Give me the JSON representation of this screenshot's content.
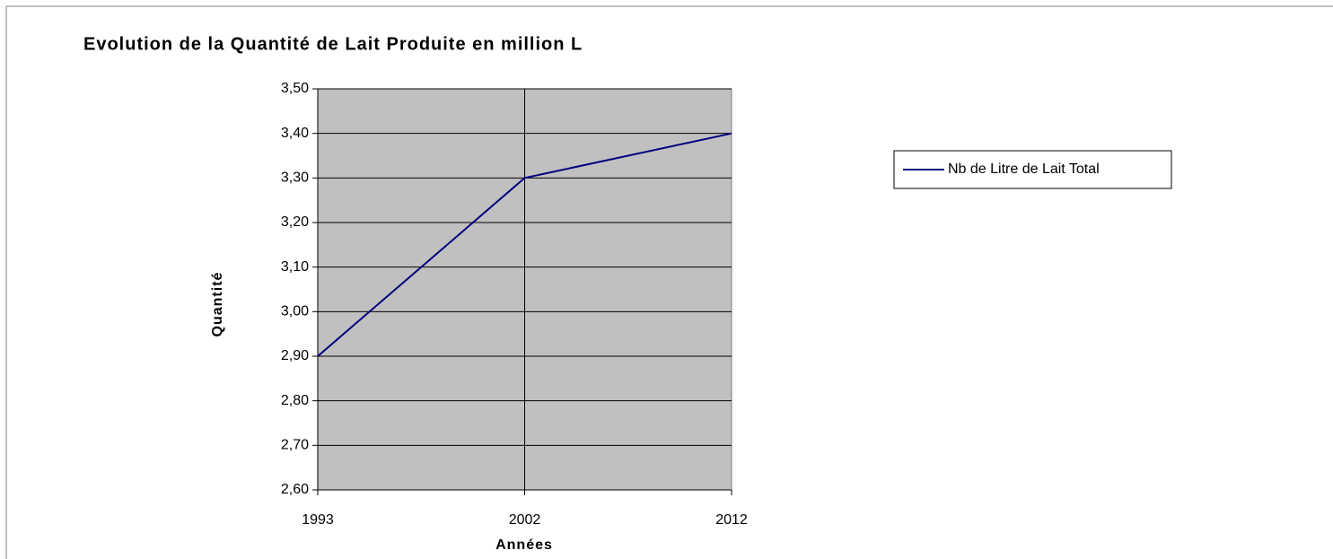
{
  "chart_data": {
    "type": "line",
    "title": "Evolution de la Quantité de Lait Produite en million L",
    "x_label": "Années",
    "y_label": "Quantité",
    "categories": [
      "1993",
      "2002",
      "2012"
    ],
    "series": [
      {
        "name": "Nb de Litre de Lait Total",
        "color": "#000080",
        "values": [
          2.9,
          3.3,
          3.4
        ]
      }
    ],
    "ylim": [
      2.6,
      3.5
    ],
    "yticks": [
      {
        "value": 2.6,
        "label": "2,60"
      },
      {
        "value": 2.7,
        "label": "2,70"
      },
      {
        "value": 2.8,
        "label": "2,80"
      },
      {
        "value": 2.9,
        "label": "2,90"
      },
      {
        "value": 3.0,
        "label": "3,00"
      },
      {
        "value": 3.1,
        "label": "3,10"
      },
      {
        "value": 3.2,
        "label": "3,20"
      },
      {
        "value": 3.3,
        "label": "3,30"
      },
      {
        "value": 3.4,
        "label": "3,40"
      },
      {
        "value": 3.5,
        "label": "3,50"
      }
    ],
    "grid": true,
    "plot_background": "#c0c0c0",
    "legend": "right"
  }
}
